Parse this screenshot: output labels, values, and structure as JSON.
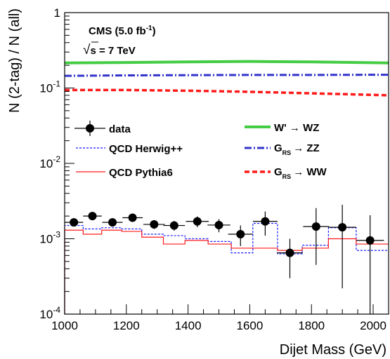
{
  "chart_data": {
    "type": "scatter",
    "title": "",
    "xlabel": "Dijet Mass (GeV)",
    "ylabel": "N (2-tag) / N (all)",
    "xlim": [
      1000,
      2050
    ],
    "ylim": [
      0.0001,
      1
    ],
    "yscale": "log",
    "grid": false,
    "legend": "left-center",
    "annotations": {
      "cms_line1_prefix": "CMS (5.0 fb",
      "cms_line1_sup": "-1",
      "cms_line1_suffix": ")",
      "cms_line2_sqrt": "√",
      "cms_line2_s": "s",
      "cms_line2_rest": " = 7 TeV"
    },
    "x_ticks": [
      1000,
      1200,
      1400,
      1600,
      1800,
      2000
    ],
    "x_tick_labels": [
      "1000",
      "1200",
      "1400",
      "1600",
      "1800",
      "2000"
    ],
    "y_ticks": [
      0.0001,
      0.001,
      0.01,
      0.1,
      1
    ],
    "y_tick_labels": [
      {
        "base": "10",
        "exp": "-4"
      },
      {
        "base": "10",
        "exp": "-3"
      },
      {
        "base": "10",
        "exp": "-2"
      },
      {
        "base": "10",
        "exp": "-1"
      },
      {
        "base": "1",
        "exp": ""
      }
    ],
    "data_points": {
      "name": "data",
      "x": [
        1030,
        1090,
        1155,
        1220,
        1290,
        1355,
        1430,
        1500,
        1570,
        1650,
        1730,
        1815,
        1900,
        1990
      ],
      "xerr": [
        30,
        30,
        33,
        33,
        35,
        35,
        37,
        37,
        40,
        40,
        42,
        42,
        45,
        45
      ],
      "y": [
        0.00165,
        0.002,
        0.00165,
        0.0019,
        0.00155,
        0.0015,
        0.0017,
        0.00152,
        0.00115,
        0.0017,
        0.00065,
        0.00145,
        0.00142,
        0.00095
      ],
      "yerr_low": [
        0.00015,
        0.0002,
        0.00015,
        0.00018,
        0.0002,
        0.00022,
        0.00028,
        0.0003,
        0.00035,
        0.0006,
        0.00035,
        0.001,
        0.0012,
        0.00093
      ],
      "yerr_high": [
        0.00015,
        0.0002,
        0.00015,
        0.00018,
        0.0002,
        0.00022,
        0.00028,
        0.0003,
        0.00035,
        0.0006,
        0.00035,
        0.0011,
        0.0014,
        0.0011
      ]
    },
    "histograms": [
      {
        "name": "QCD Herwig++",
        "color": "#1a1aff",
        "dash": "3,2",
        "edges": [
          1000,
          1060,
          1120,
          1185,
          1250,
          1320,
          1390,
          1465,
          1540,
          1610,
          1690,
          1770,
          1855,
          1945,
          2050
        ],
        "values": [
          0.0015,
          0.00135,
          0.0014,
          0.00135,
          0.00115,
          0.0011,
          0.001,
          0.00092,
          0.00065,
          0.0016,
          0.00063,
          0.00082,
          0.0014,
          0.0007
        ]
      },
      {
        "name": "QCD Pythia6",
        "color": "#ff1a1a",
        "dash": "",
        "edges": [
          1000,
          1060,
          1120,
          1185,
          1250,
          1320,
          1390,
          1465,
          1540,
          1610,
          1690,
          1770,
          1855,
          1945,
          2050
        ],
        "values": [
          0.0013,
          0.00115,
          0.0013,
          0.00125,
          0.00105,
          0.00085,
          0.00095,
          0.00085,
          0.00075,
          0.00075,
          0.0007,
          0.00075,
          0.001,
          0.00085
        ]
      }
    ],
    "signal_curves": [
      {
        "name_prefix": "W' ",
        "arrow": "→",
        "name_suffix": " WZ",
        "subscript": "",
        "color": "#44cc44",
        "dash": "",
        "width": 4,
        "x": [
          1000,
          1200,
          1400,
          1600,
          1800,
          2050
        ],
        "y": [
          0.215,
          0.218,
          0.222,
          0.225,
          0.222,
          0.215
        ]
      },
      {
        "name_prefix": "G",
        "subscript": "RS",
        "arrow": "→",
        "name_suffix": " ZZ",
        "color": "#3333cc",
        "dash": "10,3,2,3",
        "width": 3,
        "x": [
          1000,
          1200,
          1400,
          1600,
          1800,
          2050
        ],
        "y": [
          0.145,
          0.147,
          0.148,
          0.149,
          0.149,
          0.15
        ]
      },
      {
        "name_prefix": "G",
        "subscript": "RS",
        "arrow": "→",
        "name_suffix": " WW",
        "color": "#ff1a1a",
        "dash": "7,4",
        "width": 3.5,
        "x": [
          1000,
          1200,
          1400,
          1600,
          1800,
          2050
        ],
        "y": [
          0.094,
          0.094,
          0.092,
          0.089,
          0.085,
          0.08
        ]
      }
    ]
  }
}
